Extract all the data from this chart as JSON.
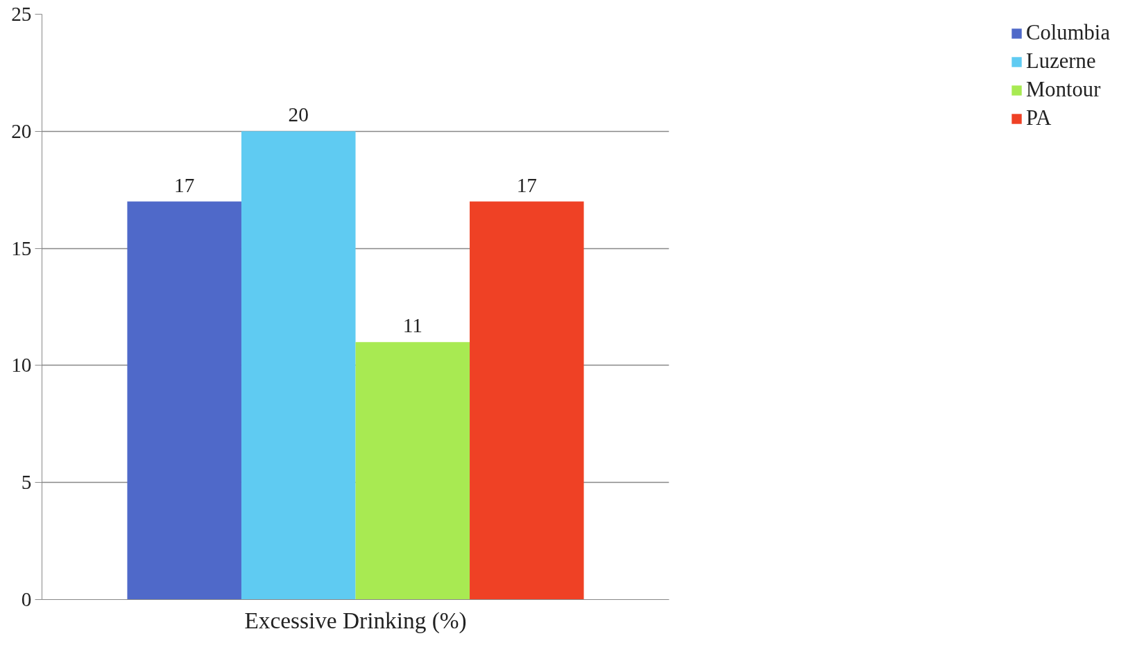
{
  "chart_data": {
    "type": "bar",
    "categories": [
      "Excessive Drinking (%)"
    ],
    "series": [
      {
        "name": "Columbia",
        "color": "#4f69c9",
        "values": [
          17
        ]
      },
      {
        "name": "Luzerne",
        "color": "#5fcbf2",
        "values": [
          20
        ]
      },
      {
        "name": "Montour",
        "color": "#a8ea52",
        "values": [
          11
        ]
      },
      {
        "name": "PA",
        "color": "#ef4125",
        "values": [
          17
        ]
      }
    ],
    "ylim": [
      0,
      25
    ],
    "yticks": [
      0,
      5,
      10,
      15,
      20,
      25
    ],
    "grid": "y",
    "legend": "right",
    "data_labels": true
  }
}
